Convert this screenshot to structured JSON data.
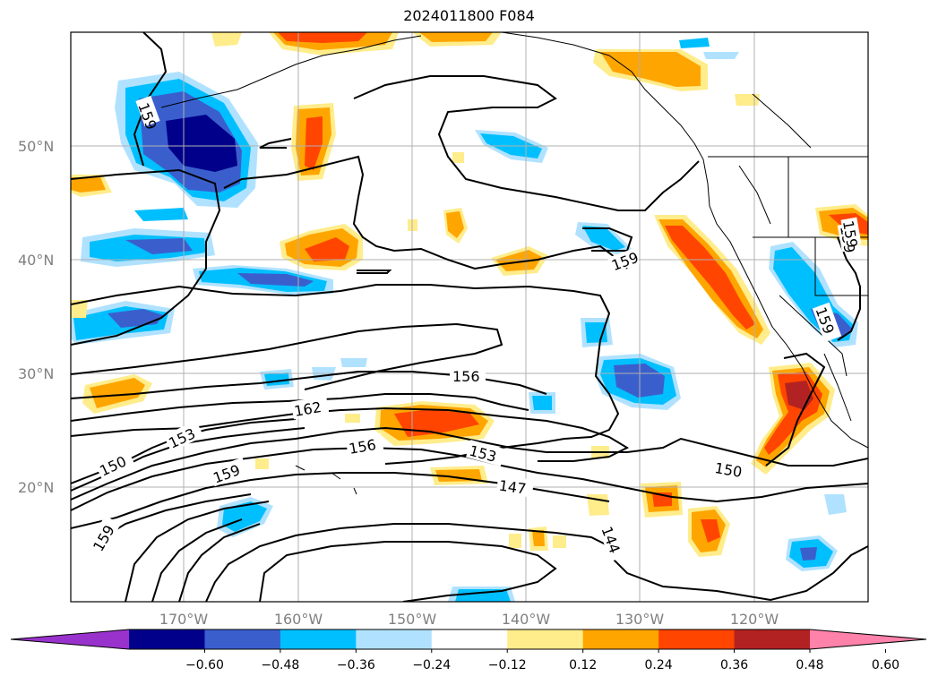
{
  "title": "2024011800 F084",
  "lat_labels": [
    "50°N",
    "40°N",
    "30°N",
    "20°N"
  ],
  "lon_labels": [
    "170°W",
    "160°W",
    "150°W",
    "140°W",
    "130°W",
    "120°W"
  ],
  "colorbar": {
    "colors": [
      "#9932cc",
      "#00008b",
      "#3a5fcd",
      "#00bfff",
      "#b0e2ff",
      "#ffffff",
      "#ffec8b",
      "#ffa500",
      "#ff4500",
      "#b22222",
      "#ff82ab"
    ],
    "ticks": [
      "−0.60",
      "−0.48",
      "−0.36",
      "−0.24",
      "−0.12",
      "0.12",
      "0.24",
      "0.36",
      "0.48",
      "0.60"
    ]
  },
  "contour_labels": [
    "159",
    "159",
    "159",
    "156",
    "162",
    "153",
    "150",
    "159",
    "156",
    "153",
    "147",
    "150",
    "144",
    "159",
    "159",
    "159"
  ]
}
